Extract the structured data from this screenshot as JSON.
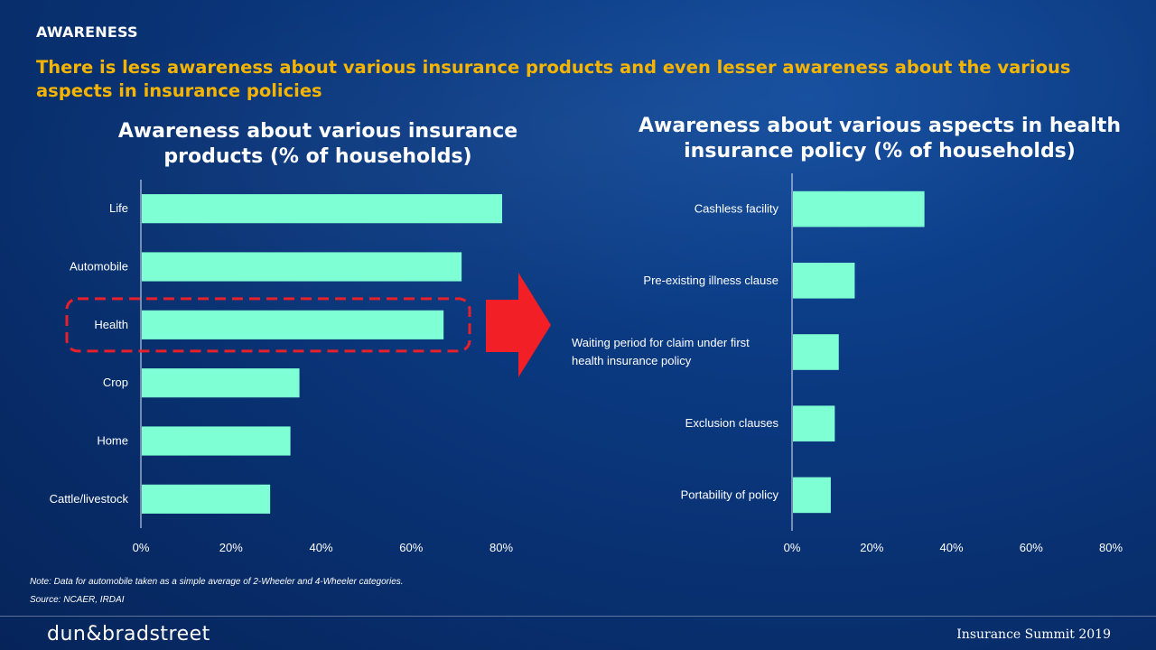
{
  "slide": {
    "section_label": "AWARENESS",
    "headline": "There is less awareness about various insurance products and even lesser awareness about the various aspects in insurance policies",
    "note": "Note: Data for automobile taken as a simple average of 2-Wheeler and 4-Wheeler categories.",
    "source": "Source: NCAER, IRDAI",
    "logo_text": "dun&bradstreet",
    "event_name": "Insurance Summit 2019"
  },
  "colors": {
    "background": "#0b3a82",
    "bar": "#7fffd4",
    "headline": "#f5b400",
    "highlight": "#e8202a"
  },
  "chart_data": [
    {
      "type": "bar",
      "orientation": "horizontal",
      "title": "Awareness about various insurance products (% of households)",
      "categories": [
        "Life",
        "Automobile",
        "Health",
        "Crop",
        "Home",
        "Cattle/livestock"
      ],
      "values": [
        80,
        71,
        67,
        35,
        33,
        28.5
      ],
      "unit": "%",
      "xlim": [
        0,
        80
      ],
      "ticks": [
        "0%",
        "20%",
        "40%",
        "60%",
        "80%"
      ],
      "highlighted_category": "Health"
    },
    {
      "type": "bar",
      "orientation": "horizontal",
      "title": "Awareness about various aspects in health insurance policy (% of households)",
      "categories": [
        "Cashless facility",
        "Pre-existing illness clause",
        "Waiting period for claim under first health insurance policy",
        "Exclusion clauses",
        "Portability of policy"
      ],
      "values": [
        33,
        15.5,
        11.5,
        10.5,
        9.5
      ],
      "unit": "%",
      "xlim": [
        0,
        80
      ],
      "ticks": [
        "0%",
        "20%",
        "40%",
        "60%",
        "80%"
      ]
    }
  ]
}
